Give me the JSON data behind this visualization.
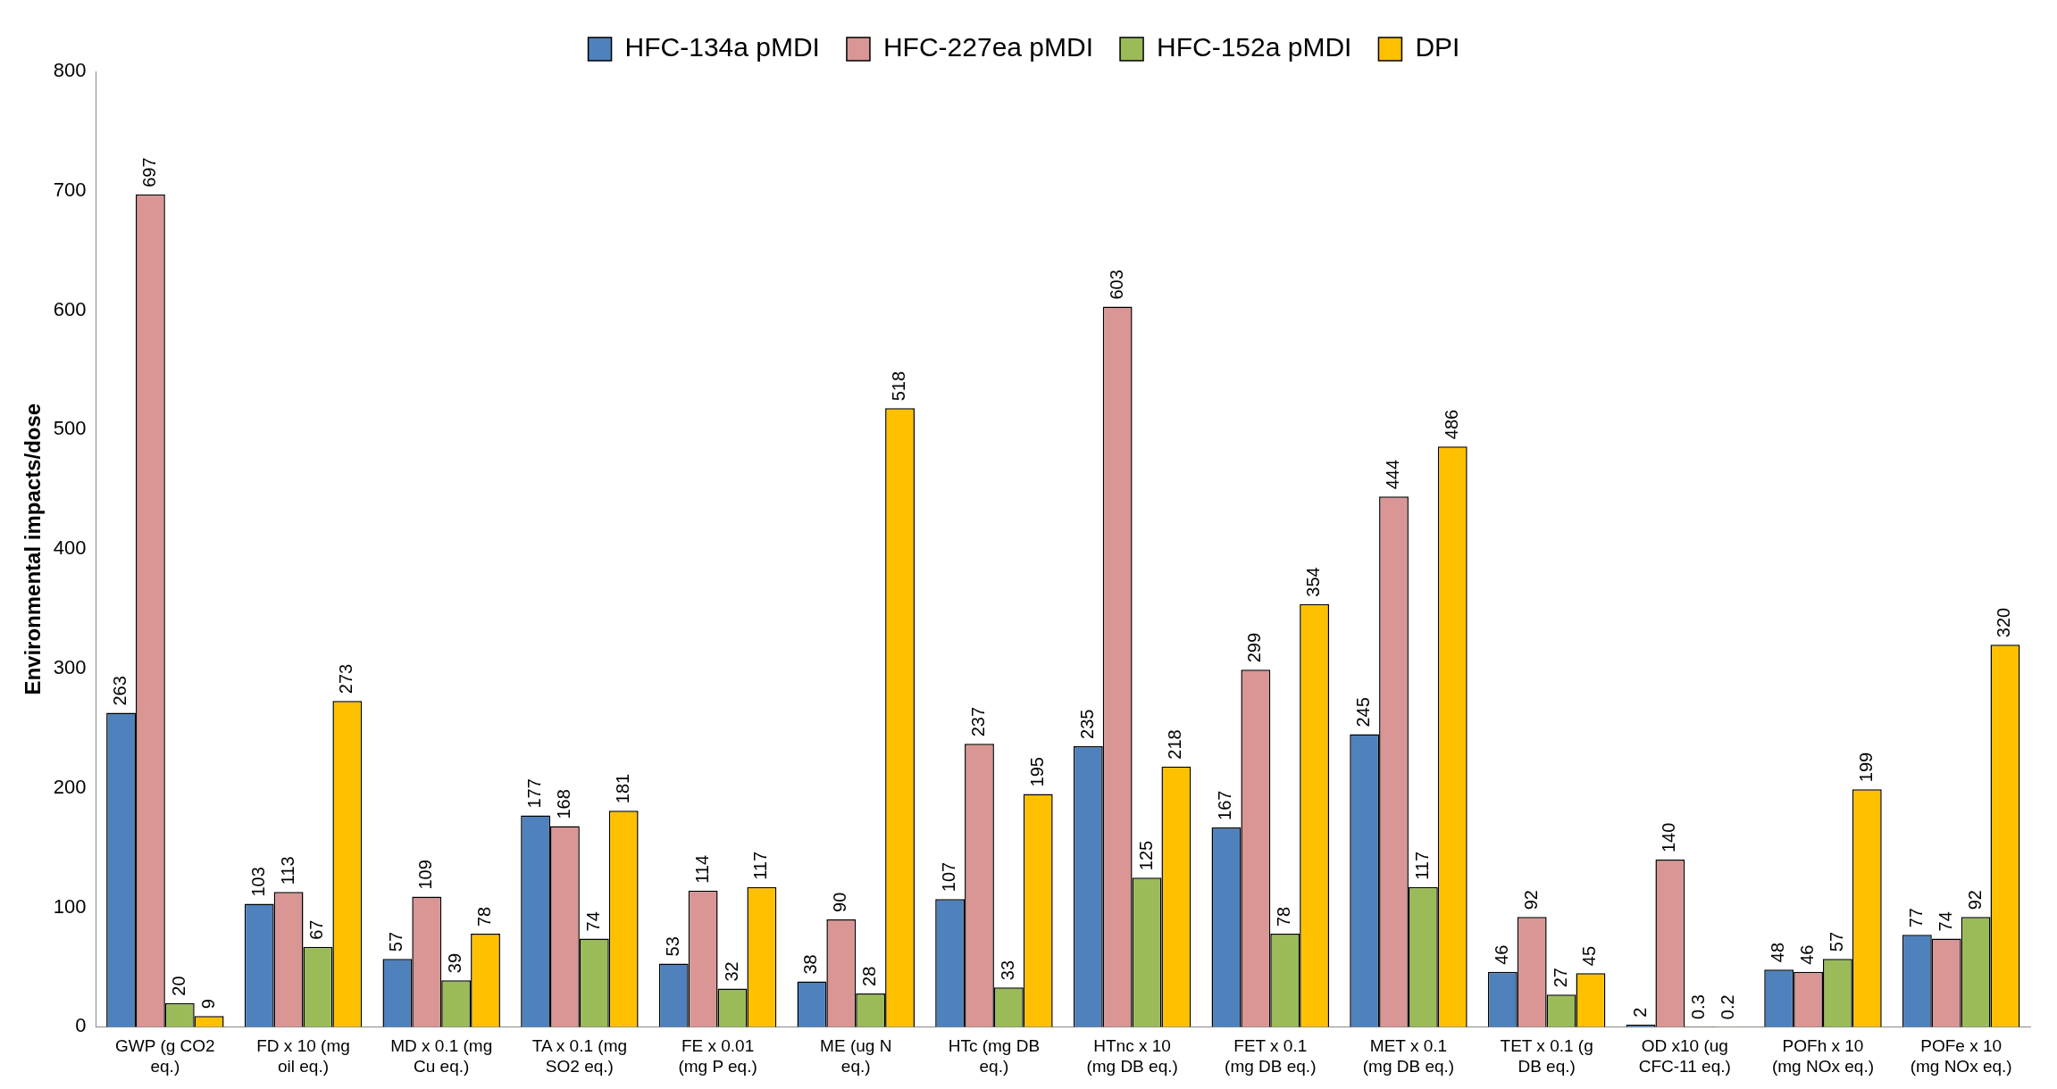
{
  "chart_data": {
    "type": "bar",
    "ylabel": "Environmental impacts/dose",
    "categories": [
      "GWP (g CO2 eq.)",
      "FD x 10 (mg oil eq.)",
      "MD x 0.1 (mg Cu eq.)",
      "TA x 0.1 (mg SO2 eq.)",
      "FE x 0.01 (mg P eq.)",
      "ME (ug N eq.)",
      "HTc (mg DB eq.)",
      "HTnc x 10 (mg DB eq.)",
      "FET x 0.1 (mg DB eq.)",
      "MET x 0.1 (mg DB eq.)",
      "TET x 0.1 (g DB eq.)",
      "OD x10 (ug CFC-11 eq.)",
      "POFh x 10 (mg NOx eq.)",
      "POFe x 10 (mg NOx eq.)"
    ],
    "series": [
      {
        "name": "HFC-134a pMDI",
        "color": "#4f81bd",
        "values": [
          263,
          103,
          57,
          177,
          53,
          38,
          107,
          235,
          167,
          245,
          46,
          2,
          48,
          77
        ]
      },
      {
        "name": "HFC-227ea pMDI",
        "color": "#d99694",
        "values": [
          697,
          113,
          109,
          168,
          114,
          90,
          237,
          603,
          299,
          444,
          92,
          140,
          46,
          74
        ]
      },
      {
        "name": "HFC-152a pMDI",
        "color": "#9bbb59",
        "values": [
          20,
          67,
          39,
          74,
          32,
          28,
          33,
          125,
          78,
          117,
          27,
          0.3,
          57,
          92
        ]
      },
      {
        "name": "DPI",
        "color": "#ffc000",
        "values": [
          9,
          273,
          78,
          181,
          117,
          518,
          195,
          218,
          354,
          486,
          45,
          0.2,
          199,
          320
        ]
      }
    ],
    "ylim": [
      0,
      800
    ],
    "yticks": [
      0,
      100,
      200,
      300,
      400,
      500,
      600,
      700,
      800
    ],
    "grid": false,
    "legend": "top",
    "data_labels": true
  }
}
